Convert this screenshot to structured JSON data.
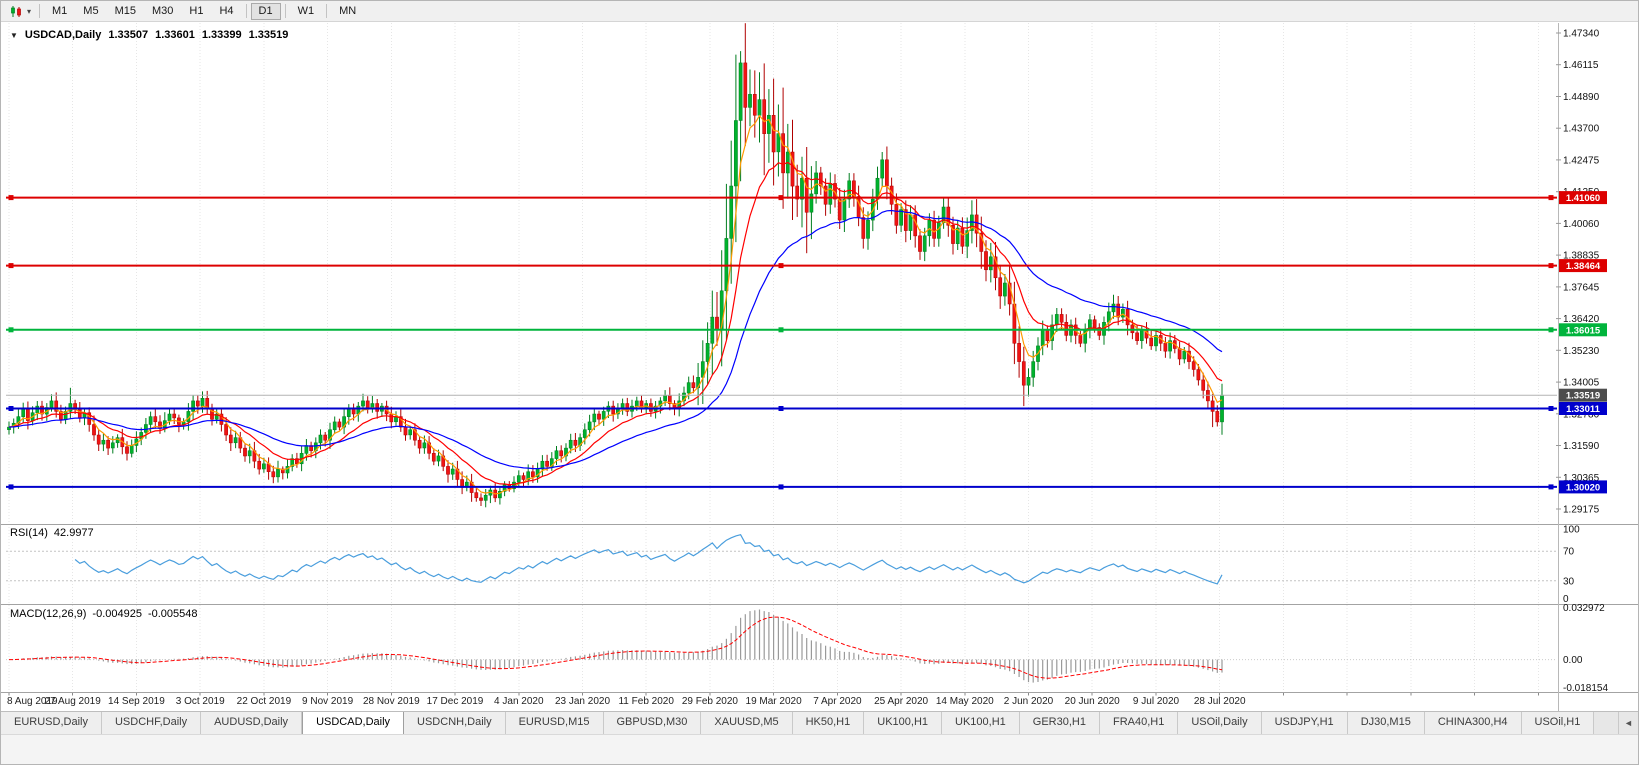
{
  "toolbar": {
    "timeframes": [
      "M1",
      "M5",
      "M15",
      "M30",
      "H1",
      "H4",
      "D1",
      "W1",
      "MN"
    ],
    "active_timeframe": "D1"
  },
  "chart_header": {
    "symbol_title": "USDCAD,Daily",
    "open": "1.33507",
    "high": "1.33601",
    "low": "1.33399",
    "close": "1.33519"
  },
  "price_axis": {
    "labels": [
      "1.47340",
      "1.46115",
      "1.44890",
      "1.43700",
      "1.42475",
      "1.41250",
      "1.40060",
      "1.38835",
      "1.37645",
      "1.36420",
      "1.35230",
      "1.34005",
      "1.32780",
      "1.31590",
      "1.30365",
      "1.29175"
    ]
  },
  "horizontal_lines": [
    {
      "price": 1.4106,
      "label": "1.41060",
      "color": "#dd0000"
    },
    {
      "price": 1.38464,
      "label": "1.38464",
      "color": "#dd0000"
    },
    {
      "price": 1.36015,
      "label": "1.36015",
      "color": "#00b43c"
    },
    {
      "price": 1.33011,
      "label": "1.33011",
      "color": "#0000cc"
    },
    {
      "price": 1.3002,
      "label": "1.30020",
      "color": "#0000cc"
    }
  ],
  "current_price": {
    "value": 1.33519,
    "label": "1.33519",
    "tag_color": "#4d4d4d"
  },
  "x_axis": {
    "date_labels": [
      "8 Aug 2019",
      "27 Aug 2019",
      "14 Sep 2019",
      "3 Oct 2019",
      "22 Oct 2019",
      "9 Nov 2019",
      "28 Nov 2019",
      "17 Dec 2019",
      "4 Jan 2020",
      "23 Jan 2020",
      "11 Feb 2020",
      "29 Feb 2020",
      "19 Mar 2020",
      "7 Apr 2020",
      "25 Apr 2020",
      "14 May 2020",
      "2 Jun 2020",
      "20 Jun 2020",
      "9 Jul 2020",
      "28 Jul 2020"
    ]
  },
  "rsi_panel": {
    "label": "RSI(14)",
    "value": "42.9977",
    "period": 14,
    "levels": [
      70,
      30
    ],
    "scale_values": [
      100,
      70,
      30,
      0
    ],
    "scale_labels": [
      "100",
      "70",
      "30",
      "0"
    ],
    "line_color": "#4a9edd"
  },
  "macd_panel": {
    "label": "MACD(12,26,9)",
    "value": "-0.004925",
    "signal_value": "-0.005548",
    "fast": 12,
    "slow": 26,
    "signal": 9,
    "scale_labels": [
      "0.032972",
      "0.00",
      "-0.018154"
    ],
    "scale_max": 0.032972,
    "scale_min": -0.018154,
    "histogram_color": "#9a9a9a",
    "signal_color": "#ff0000"
  },
  "tabs": {
    "active": "USDCAD,Daily",
    "scroll_arrow": "◄",
    "items": [
      "EURUSD,Daily",
      "USDCHF,Daily",
      "AUDUSD,Daily",
      "USDCAD,Daily",
      "USDCNH,Daily",
      "EURUSD,M15",
      "GBPUSD,M30",
      "XAUUSD,M5",
      "HK50,H1",
      "UK100,H1",
      "UK100,H1",
      "GER30,H1",
      "FRA40,H1",
      "USOil,Daily",
      "USDJPY,H1",
      "DJ30,M15",
      "CHINA300,H4",
      "USOil,H1"
    ]
  },
  "chart_data": {
    "type": "candlestick",
    "title": "USDCAD,Daily",
    "symbol": "USDCAD",
    "timeframe": "Daily",
    "x_range": [
      "8 Aug 2019",
      "28 Jul 2020"
    ],
    "y_axis_top": 1.4734,
    "y_axis_bottom": 1.29175,
    "first_open": 1.322,
    "closes": [
      1.323,
      1.3245,
      1.327,
      1.33,
      1.3255,
      1.3285,
      1.331,
      1.328,
      1.3305,
      1.333,
      1.329,
      1.326,
      1.329,
      1.332,
      1.33,
      1.3265,
      1.3285,
      1.324,
      1.32,
      1.3165,
      1.318,
      1.315,
      1.317,
      1.319,
      1.3155,
      1.313,
      1.316,
      1.3185,
      1.321,
      1.324,
      1.327,
      1.325,
      1.3225,
      1.3255,
      1.328,
      1.3265,
      1.324,
      1.325,
      1.329,
      1.333,
      1.331,
      1.334,
      1.33,
      1.326,
      1.328,
      1.324,
      1.32,
      1.317,
      1.319,
      1.315,
      1.312,
      1.314,
      1.31,
      1.307,
      1.309,
      1.306,
      1.304,
      1.307,
      1.3055,
      1.308,
      1.311,
      1.309,
      1.313,
      1.316,
      1.314,
      1.317,
      1.32,
      1.318,
      1.322,
      1.325,
      1.323,
      1.327,
      1.33,
      1.328,
      1.331,
      1.333,
      1.33,
      1.332,
      1.329,
      1.331,
      1.328,
      1.325,
      1.327,
      1.323,
      1.32,
      1.322,
      1.318,
      1.315,
      1.317,
      1.313,
      1.31,
      1.312,
      1.308,
      1.305,
      1.307,
      1.303,
      1.3,
      1.302,
      1.298,
      1.296,
      1.295,
      1.297,
      1.299,
      1.296,
      1.2985,
      1.301,
      1.2995,
      1.302,
      1.3045,
      1.303,
      1.306,
      1.304,
      1.307,
      1.31,
      1.308,
      1.311,
      1.314,
      1.312,
      1.315,
      1.318,
      1.316,
      1.319,
      1.322,
      1.325,
      1.328,
      1.326,
      1.329,
      1.331,
      1.328,
      1.33,
      1.332,
      1.329,
      1.331,
      1.333,
      1.33,
      1.332,
      1.329,
      1.331,
      1.333,
      1.335,
      1.332,
      1.33,
      1.333,
      1.336,
      1.34,
      1.338,
      1.342,
      1.348,
      1.355,
      1.365,
      1.36,
      1.375,
      1.395,
      1.415,
      1.44,
      1.462,
      1.445,
      1.45,
      1.442,
      1.448,
      1.435,
      1.442,
      1.428,
      1.435,
      1.42,
      1.428,
      1.415,
      1.41,
      1.418,
      1.405,
      1.412,
      1.42,
      1.415,
      1.408,
      1.416,
      1.41,
      1.402,
      1.41,
      1.417,
      1.411,
      1.403,
      1.395,
      1.402,
      1.41,
      1.418,
      1.425,
      1.415,
      1.408,
      1.4,
      1.406,
      1.398,
      1.404,
      1.396,
      1.39,
      1.396,
      1.402,
      1.395,
      1.401,
      1.407,
      1.4,
      1.393,
      1.399,
      1.392,
      1.398,
      1.404,
      1.397,
      1.39,
      1.383,
      1.388,
      1.38,
      1.373,
      1.378,
      1.37,
      1.355,
      1.348,
      1.339,
      1.342,
      1.348,
      1.354,
      1.36,
      1.356,
      1.362,
      1.366,
      1.363,
      1.358,
      1.362,
      1.358,
      1.355,
      1.36,
      1.364,
      1.361,
      1.358,
      1.363,
      1.367,
      1.37,
      1.365,
      1.368,
      1.362,
      1.359,
      1.356,
      1.36,
      1.357,
      1.354,
      1.358,
      1.355,
      1.352,
      1.356,
      1.353,
      1.349,
      1.352,
      1.348,
      1.345,
      1.341,
      1.337,
      1.333,
      1.329,
      1.325,
      1.33519
    ],
    "high_overrides": {
      "13": 1.338,
      "155": 1.4665,
      "161": 1.452,
      "185": 1.428,
      "234": 1.3735
    },
    "low_overrides": {
      "98": 1.2945,
      "102": 1.294,
      "215": 1.331,
      "255": 1.323
    },
    "up_color": "#00b22d",
    "up_border": "#007d1f",
    "down_color": "#f01414",
    "down_border": "#b00000",
    "moving_averages": [
      {
        "period": 5,
        "color": "#ff9900"
      },
      {
        "period": 13,
        "color": "#ff0000"
      },
      {
        "period": 34,
        "color": "#0000ff"
      }
    ]
  }
}
